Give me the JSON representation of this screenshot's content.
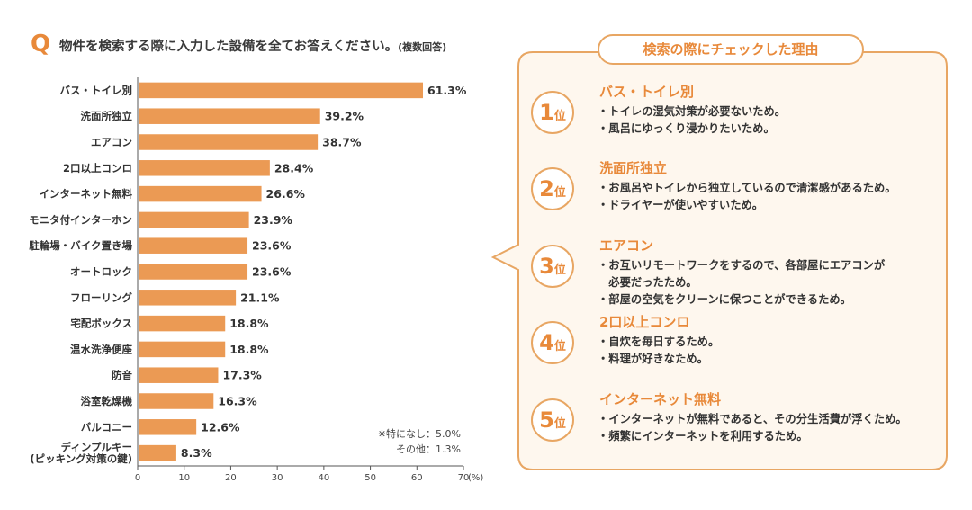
{
  "question": {
    "mark": "Q",
    "text": "物件を検索する際に入力した設備を全てお答えください。",
    "note": "(複数回答)"
  },
  "chart_data": {
    "type": "bar",
    "orientation": "horizontal",
    "categories": [
      "バス・トイレ別",
      "洗面所独立",
      "エアコン",
      "2口以上コンロ",
      "インターネット無料",
      "モニタ付インターホン",
      "駐輪場・バイク置き場",
      "オートロック",
      "フローリング",
      "宅配ボックス",
      "温水洗浄便座",
      "防音",
      "浴室乾燥機",
      "バルコニー",
      "ディンプルキー\n(ピッキング対策の鍵)"
    ],
    "values": [
      61.3,
      39.2,
      38.7,
      28.4,
      26.6,
      23.9,
      23.6,
      23.6,
      21.1,
      18.8,
      18.8,
      17.3,
      16.3,
      12.6,
      8.3
    ],
    "value_labels": [
      "61.3%",
      "39.2%",
      "38.7%",
      "28.4%",
      "26.6%",
      "23.9%",
      "23.6%",
      "23.6%",
      "21.1%",
      "18.8%",
      "18.8%",
      "17.3%",
      "16.3%",
      "12.6%",
      "8.3%"
    ],
    "xlim": [
      0,
      70
    ],
    "xticks": [
      0,
      10,
      20,
      30,
      40,
      50,
      60,
      70
    ],
    "xunit": "(%)",
    "bar_color": "#eb9a54"
  },
  "notes": {
    "none": "※特になし：5.0%",
    "other": "その他：1.3%"
  },
  "panel": {
    "title": "検索の際にチェックした理由",
    "rank_suffix": "位",
    "items": [
      {
        "rank": "1",
        "title": "バス・トイレ別",
        "lines": [
          "・トイレの湿気対策が必要ないため。",
          "・風呂にゆっくり浸かりたいため。"
        ]
      },
      {
        "rank": "2",
        "title": "洗面所独立",
        "lines": [
          "・お風呂やトイレから独立しているので清潔感があるため。",
          "・ドライヤーが使いやすいため。"
        ]
      },
      {
        "rank": "3",
        "title": "エアコン",
        "lines": [
          "・お互いリモートワークをするので、各部屋にエアコンが",
          "　必要だったため。",
          "・部屋の空気をクリーンに保つことができるため。"
        ]
      },
      {
        "rank": "4",
        "title": "2口以上コンロ",
        "lines": [
          "・自炊を毎日するため。",
          "・料理が好きなため。"
        ]
      },
      {
        "rank": "5",
        "title": "インターネット無料",
        "lines": [
          "・インターネットが無料であると、その分生活費が浮くため。",
          "・頻繁にインターネットを利用するため。"
        ]
      }
    ],
    "colors": {
      "accent": "#e8893a",
      "border": "#e8a663"
    }
  }
}
